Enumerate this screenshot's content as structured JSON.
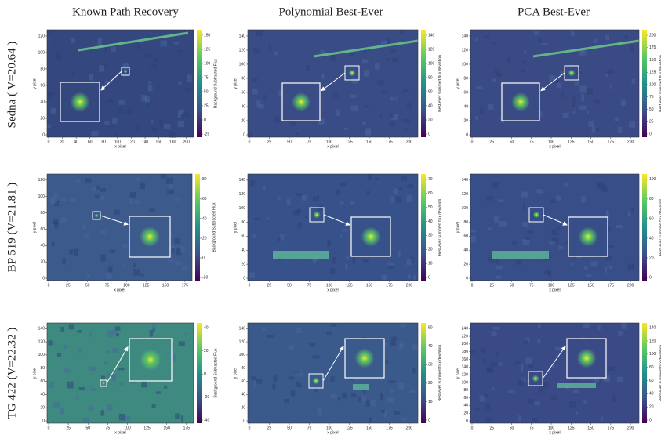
{
  "columns": [
    "Known Path Recovery",
    "Polynomial Best-Ever",
    "PCA Best-Ever"
  ],
  "rows": [
    "Sedna ( V=20.64 )",
    "BP 519 (V=21.81 )",
    "TG 422 (V=22.32 )"
  ],
  "panels": [
    [
      {
        "xticks": [
          0,
          20,
          40,
          60,
          80,
          100,
          120,
          140,
          160,
          180,
          200
        ],
        "yticks": [
          0,
          20,
          40,
          60,
          80,
          100,
          120
        ],
        "cbar_ticks": [
          -25,
          0,
          25,
          50,
          75,
          100,
          125,
          150
        ],
        "xlabel": "x pixel",
        "ylabel": "y pixel",
        "cbar_label": "Background Subtracted Flux"
      },
      {
        "xticks": [
          0,
          25,
          50,
          75,
          100,
          125,
          150,
          175,
          200
        ],
        "yticks": [
          0,
          20,
          40,
          60,
          80,
          100,
          120,
          140
        ],
        "cbar_ticks": [
          0,
          20,
          40,
          60,
          80,
          100,
          120,
          140
        ],
        "xlabel": "x pixel",
        "ylabel": "y pixel",
        "cbar_label": "Best-ever summed flux deviation"
      },
      {
        "xticks": [
          0,
          25,
          50,
          75,
          100,
          125,
          150,
          175,
          200
        ],
        "yticks": [
          0,
          20,
          40,
          60,
          80,
          100,
          120,
          140
        ],
        "cbar_ticks": [
          0,
          25,
          50,
          75,
          100,
          125,
          150,
          175,
          200
        ],
        "xlabel": "x pixel",
        "ylabel": "y pixel",
        "cbar_label": "Best-ever summed flux deviation"
      }
    ],
    [
      {
        "xticks": [
          0,
          25,
          50,
          75,
          100,
          125,
          150,
          175
        ],
        "yticks": [
          0,
          20,
          40,
          60,
          80,
          100,
          120
        ],
        "cbar_ticks": [
          -20,
          0,
          20,
          40,
          60,
          80
        ],
        "xlabel": "x pixel",
        "ylabel": "y pixel",
        "cbar_label": "Background Subtracted Flux"
      },
      {
        "xticks": [
          0,
          25,
          50,
          75,
          100,
          125,
          150,
          175,
          200
        ],
        "yticks": [
          0,
          20,
          40,
          60,
          80,
          100,
          120,
          140
        ],
        "cbar_ticks": [
          0,
          10,
          20,
          30,
          40,
          50,
          60,
          70
        ],
        "xlabel": "x pixel",
        "ylabel": "y pixel",
        "cbar_label": "Best-ever summed flux deviation"
      },
      {
        "xticks": [
          0,
          25,
          50,
          75,
          100,
          125,
          150,
          175,
          200
        ],
        "yticks": [
          0,
          20,
          40,
          60,
          80,
          100,
          120,
          140
        ],
        "cbar_ticks": [
          0,
          20,
          40,
          60,
          80,
          100
        ],
        "xlabel": "x pixel",
        "ylabel": "y pixel",
        "cbar_label": "Best-ever summed flux deviation"
      }
    ],
    [
      {
        "xticks": [
          0,
          25,
          50,
          75,
          100,
          125,
          150,
          175
        ],
        "yticks": [
          0,
          20,
          40,
          60,
          80,
          100,
          120,
          140
        ],
        "cbar_ticks": [
          -40,
          -20,
          0,
          20,
          40
        ],
        "xlabel": "x pixel",
        "ylabel": "y pixel",
        "cbar_label": "Background Subtracted Flux"
      },
      {
        "xticks": [
          0,
          25,
          50,
          75,
          100,
          125,
          150,
          175,
          200
        ],
        "yticks": [
          0,
          20,
          40,
          60,
          80,
          100,
          120,
          140
        ],
        "cbar_ticks": [
          0,
          10,
          20,
          30,
          40,
          50
        ],
        "xlabel": "x pixel",
        "ylabel": "y pixel",
        "cbar_label": "Best-ever summed flux deviation"
      },
      {
        "xticks": [
          0,
          25,
          50,
          75,
          100,
          125,
          150,
          175,
          200
        ],
        "yticks": [
          0,
          20,
          40,
          60,
          80,
          100,
          120,
          140,
          160,
          180,
          200,
          220,
          240
        ],
        "cbar_ticks": [
          0,
          20,
          40,
          60,
          80,
          100,
          120,
          140
        ],
        "xlabel": "x pixel",
        "ylabel": "y pixel",
        "cbar_label": "Best-ever summed flux deviation"
      }
    ]
  ]
}
